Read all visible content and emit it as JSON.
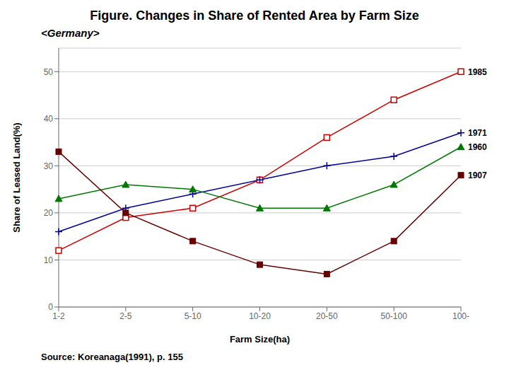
{
  "chart_data": {
    "type": "line",
    "title": "Figure. Changes in Share of Rented Area by Farm Size",
    "subtitle": "<Germany>",
    "x_label": "Farm Size(ha)",
    "y_label": "Share of Leased Land(%)",
    "categories": [
      "1-2",
      "2-5",
      "5-10",
      "10-20",
      "20-50",
      "50-100",
      "100-"
    ],
    "series": [
      {
        "name": "1985",
        "color": "#cc0000",
        "marker": "open square",
        "values": [
          12,
          19,
          21,
          27,
          36,
          44,
          50
        ]
      },
      {
        "name": "1971",
        "color": "#000099",
        "marker": "plus",
        "values": [
          16,
          21,
          24,
          27,
          30,
          32,
          37
        ]
      },
      {
        "name": "1960",
        "color": "#007700",
        "marker": "triangle",
        "values": [
          23,
          26,
          25,
          21,
          21,
          26,
          34
        ]
      },
      {
        "name": "1907",
        "color": "#660000",
        "marker": "square",
        "values": [
          33,
          20,
          14,
          9,
          7,
          14,
          28
        ]
      }
    ],
    "ylim": [
      0,
      55
    ],
    "yticks": [
      0,
      10,
      20,
      30,
      40,
      50
    ],
    "grid": true,
    "annotations": [
      "Source: Koreanaga(1991), p. 155"
    ]
  }
}
